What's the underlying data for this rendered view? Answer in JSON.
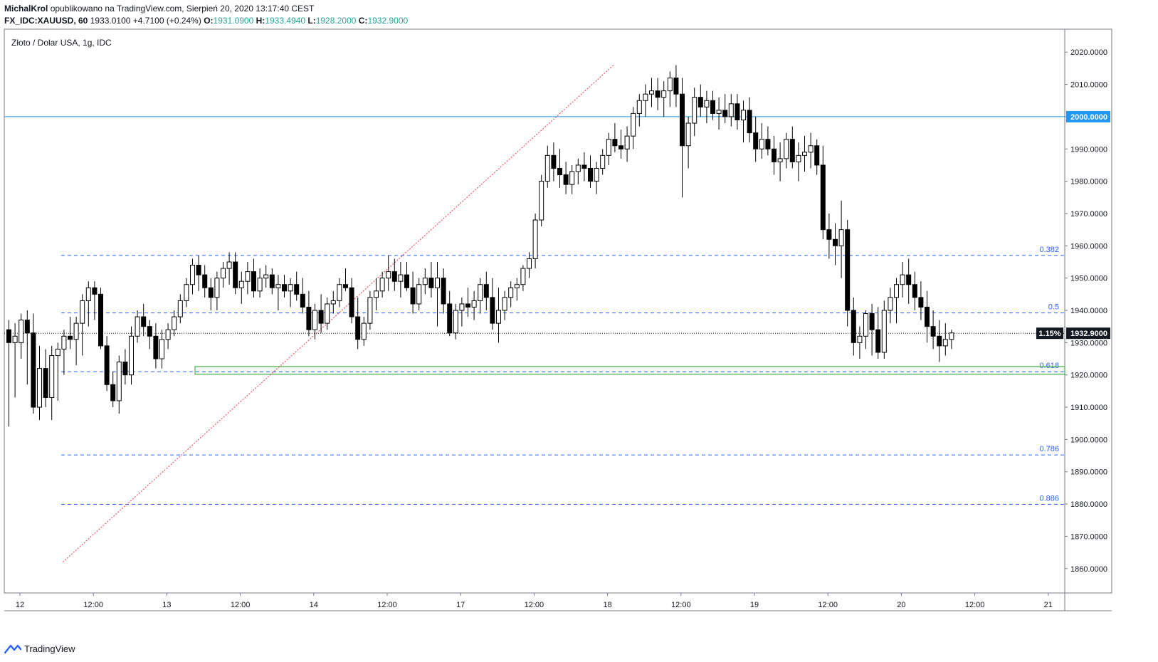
{
  "header": {
    "author": "MichalKrol",
    "published": "opublikowano na TradingView.com, Sierpień 20, 2020 13:17:40 CEST",
    "symbol": "FX_IDC:XAUUSD, 60",
    "last": "1933.0100",
    "change": "+4.7100 (+0.24%)",
    "open_label": "O:",
    "open": "1931.0900",
    "high_label": "H:",
    "high": "1933.4940",
    "low_label": "L:",
    "low": "1928.2000",
    "close_label": "C:",
    "close": "1932.9000"
  },
  "chart_title": "Złoto / Dolar USA, 1g, IDC",
  "footer": {
    "brand": "TradingView"
  },
  "colors": {
    "grid": "#e0e3eb",
    "fib": "#2962ff",
    "level": "#2196f3",
    "trend": "#f23645",
    "zone": "#4caf50",
    "candle_down": "#000000",
    "candle_up": "#ffffff"
  },
  "chart_data": {
    "type": "candlestick",
    "ylim": [
      1853,
      2027
    ],
    "y_ticks": [
      1860,
      1870,
      1880,
      1890,
      1900,
      1910,
      1920,
      1930,
      1940,
      1950,
      1960,
      1970,
      1980,
      1990,
      2000,
      2010,
      2020
    ],
    "y_tick_labels": [
      "1860.0000",
      "1870.0000",
      "1880.0000",
      "1890.0000",
      "1900.0000",
      "1910.0000",
      "1920.0000",
      "1930.0000",
      "1940.0000",
      "1950.0000",
      "1960.0000",
      "1970.0000",
      "1980.0000",
      "1990.0000",
      "2000.0000",
      "2010.0000",
      "2020.0000"
    ],
    "x_ticks": [
      {
        "i": 0,
        "label": "12"
      },
      {
        "i": 12,
        "label": "12:00"
      },
      {
        "i": 24,
        "label": "13"
      },
      {
        "i": 36,
        "label": "12:00"
      },
      {
        "i": 48,
        "label": "14"
      },
      {
        "i": 60,
        "label": "12:00"
      },
      {
        "i": 72,
        "label": "17"
      },
      {
        "i": 84,
        "label": "12:00"
      },
      {
        "i": 96,
        "label": "18"
      },
      {
        "i": 108,
        "label": "12:00"
      },
      {
        "i": 120,
        "label": "19"
      },
      {
        "i": 132,
        "label": "12:00"
      },
      {
        "i": 144,
        "label": "20"
      },
      {
        "i": 156,
        "label": "12:00"
      },
      {
        "i": 168,
        "label": "21"
      }
    ],
    "candles": [
      [
        1934,
        1937,
        1904,
        1930
      ],
      [
        1930,
        1936,
        1913,
        1932
      ],
      [
        1930,
        1939,
        1925,
        1937
      ],
      [
        1937,
        1940,
        1917,
        1933
      ],
      [
        1933,
        1939,
        1908,
        1910
      ],
      [
        1910,
        1929,
        1906,
        1922
      ],
      [
        1922,
        1928,
        1910,
        1913
      ],
      [
        1913,
        1929,
        1906,
        1926
      ],
      [
        1926,
        1930,
        1912,
        1928
      ],
      [
        1928,
        1934,
        1920,
        1932
      ],
      [
        1932,
        1938,
        1928,
        1931
      ],
      [
        1931,
        1938,
        1923,
        1936
      ],
      [
        1936,
        1945,
        1926,
        1943
      ],
      [
        1943,
        1949,
        1935,
        1947
      ],
      [
        1947,
        1949,
        1937,
        1945
      ],
      [
        1945,
        1947,
        1928,
        1929
      ],
      [
        1929,
        1932,
        1915,
        1917
      ],
      [
        1917,
        1921,
        1910,
        1912
      ],
      [
        1912,
        1926,
        1908,
        1924
      ],
      [
        1924,
        1928,
        1917,
        1920
      ],
      [
        1920,
        1935,
        1917,
        1932
      ],
      [
        1932,
        1940,
        1930,
        1938
      ],
      [
        1938,
        1942,
        1932,
        1935
      ],
      [
        1935,
        1937,
        1928,
        1932
      ],
      [
        1932,
        1936,
        1922,
        1925
      ],
      [
        1925,
        1934,
        1922,
        1931
      ],
      [
        1931,
        1936,
        1928,
        1934
      ],
      [
        1934,
        1940,
        1932,
        1938
      ],
      [
        1938,
        1945,
        1936,
        1943
      ],
      [
        1943,
        1950,
        1941,
        1948
      ],
      [
        1948,
        1956,
        1945,
        1954
      ],
      [
        1954,
        1957,
        1946,
        1951
      ],
      [
        1951,
        1954,
        1944,
        1947
      ],
      [
        1947,
        1950,
        1940,
        1944
      ],
      [
        1944,
        1952,
        1940,
        1950
      ],
      [
        1950,
        1955,
        1947,
        1953
      ],
      [
        1953,
        1958,
        1948,
        1955
      ],
      [
        1955,
        1958,
        1945,
        1947
      ],
      [
        1947,
        1952,
        1942,
        1949
      ],
      [
        1949,
        1955,
        1945,
        1952
      ],
      [
        1952,
        1956,
        1944,
        1946
      ],
      [
        1946,
        1953,
        1944,
        1950
      ],
      [
        1950,
        1954,
        1947,
        1951
      ],
      [
        1951,
        1953,
        1945,
        1947
      ],
      [
        1947,
        1951,
        1940,
        1948
      ],
      [
        1948,
        1951,
        1944,
        1946
      ],
      [
        1946,
        1950,
        1941,
        1948
      ],
      [
        1948,
        1952,
        1943,
        1945
      ],
      [
        1945,
        1950,
        1939,
        1941
      ],
      [
        1941,
        1946,
        1932,
        1934
      ],
      [
        1934,
        1942,
        1931,
        1940
      ],
      [
        1940,
        1945,
        1933,
        1936
      ],
      [
        1936,
        1944,
        1934,
        1942
      ],
      [
        1942,
        1946,
        1939,
        1943
      ],
      [
        1943,
        1950,
        1941,
        1948
      ],
      [
        1948,
        1953,
        1946,
        1947
      ],
      [
        1947,
        1950,
        1936,
        1938
      ],
      [
        1938,
        1944,
        1928,
        1931
      ],
      [
        1931,
        1938,
        1929,
        1936
      ],
      [
        1936,
        1946,
        1934,
        1944
      ],
      [
        1944,
        1950,
        1940,
        1946
      ],
      [
        1946,
        1952,
        1944,
        1950
      ],
      [
        1950,
        1957,
        1946,
        1952
      ],
      [
        1952,
        1956,
        1946,
        1949
      ],
      [
        1949,
        1955,
        1944,
        1951
      ],
      [
        1951,
        1955,
        1946,
        1947
      ],
      [
        1947,
        1952,
        1939,
        1942
      ],
      [
        1942,
        1950,
        1940,
        1948
      ],
      [
        1948,
        1953,
        1945,
        1950
      ],
      [
        1950,
        1955,
        1944,
        1947
      ],
      [
        1947,
        1955,
        1935,
        1950
      ],
      [
        1950,
        1953,
        1939,
        1942
      ],
      [
        1942,
        1946,
        1932,
        1933
      ],
      [
        1933,
        1942,
        1931,
        1940
      ],
      [
        1940,
        1944,
        1935,
        1942
      ],
      [
        1942,
        1947,
        1938,
        1941
      ],
      [
        1941,
        1946,
        1937,
        1943
      ],
      [
        1943,
        1950,
        1939,
        1948
      ],
      [
        1948,
        1952,
        1940,
        1944
      ],
      [
        1944,
        1950,
        1934,
        1936
      ],
      [
        1936,
        1947,
        1930,
        1940
      ],
      [
        1940,
        1946,
        1937,
        1944
      ],
      [
        1944,
        1949,
        1941,
        1947
      ],
      [
        1947,
        1950,
        1943,
        1948
      ],
      [
        1948,
        1954,
        1946,
        1953
      ],
      [
        1953,
        1958,
        1950,
        1956
      ],
      [
        1956,
        1970,
        1953,
        1968
      ],
      [
        1968,
        1982,
        1966,
        1980
      ],
      [
        1980,
        1991,
        1978,
        1988
      ],
      [
        1988,
        1992,
        1980,
        1984
      ],
      [
        1984,
        1990,
        1978,
        1982
      ],
      [
        1982,
        1986,
        1976,
        1979
      ],
      [
        1979,
        1985,
        1976,
        1983
      ],
      [
        1983,
        1987,
        1979,
        1985
      ],
      [
        1985,
        1989,
        1980,
        1984
      ],
      [
        1984,
        1988,
        1978,
        1980
      ],
      [
        1980,
        1986,
        1976,
        1984
      ],
      [
        1984,
        1990,
        1982,
        1988
      ],
      [
        1988,
        1995,
        1985,
        1993
      ],
      [
        1993,
        1998,
        1989,
        1991
      ],
      [
        1991,
        1996,
        1987,
        1990
      ],
      [
        1990,
        1997,
        1986,
        1994
      ],
      [
        1994,
        2003,
        1990,
        2001
      ],
      [
        2001,
        2007,
        1997,
        2005
      ],
      [
        2005,
        2010,
        2000,
        2007
      ],
      [
        2007,
        2012,
        2003,
        2008
      ],
      [
        2008,
        2012,
        2002,
        2006
      ],
      [
        2006,
        2011,
        2000,
        2008
      ],
      [
        2008,
        2014,
        2003,
        2012
      ],
      [
        2012,
        2016,
        2003,
        2007
      ],
      [
        2007,
        2012,
        1975,
        1991
      ],
      [
        1991,
        2000,
        1984,
        1998
      ],
      [
        1998,
        2009,
        1994,
        2006
      ],
      [
        2006,
        2010,
        2000,
        2003
      ],
      [
        2003,
        2008,
        1998,
        2005
      ],
      [
        2005,
        2008,
        1999,
        2001
      ],
      [
        2001,
        2006,
        1996,
        2002
      ],
      [
        2002,
        2007,
        1998,
        2000
      ],
      [
        2000,
        2007,
        1997,
        2004
      ],
      [
        2004,
        2007,
        1996,
        1999
      ],
      [
        1999,
        2005,
        1992,
        2002
      ],
      [
        2002,
        2006,
        1992,
        1995
      ],
      [
        1995,
        2000,
        1986,
        1990
      ],
      [
        1990,
        1998,
        1987,
        1993
      ],
      [
        1993,
        1997,
        1988,
        1990
      ],
      [
        1990,
        1994,
        1982,
        1986
      ],
      [
        1986,
        1992,
        1980,
        1987
      ],
      [
        1987,
        1995,
        1984,
        1993
      ],
      [
        1993,
        1997,
        1984,
        1986
      ],
      [
        1986,
        1992,
        1980,
        1988
      ],
      [
        1988,
        1994,
        1983,
        1989
      ],
      [
        1989,
        1995,
        1984,
        1991
      ],
      [
        1991,
        1993,
        1982,
        1985
      ],
      [
        1985,
        1991,
        1962,
        1965
      ],
      [
        1965,
        1970,
        1956,
        1962
      ],
      [
        1962,
        1967,
        1954,
        1960
      ],
      [
        1960,
        1974,
        1950,
        1965
      ],
      [
        1965,
        1968,
        1935,
        1940
      ],
      [
        1940,
        1944,
        1926,
        1930
      ],
      [
        1930,
        1935,
        1925,
        1932
      ],
      [
        1932,
        1940,
        1928,
        1939
      ],
      [
        1939,
        1942,
        1926,
        1934
      ],
      [
        1934,
        1941,
        1925,
        1927
      ],
      [
        1927,
        1943,
        1925,
        1940
      ],
      [
        1940,
        1947,
        1936,
        1944
      ],
      [
        1944,
        1950,
        1936,
        1948
      ],
      [
        1948,
        1955,
        1944,
        1951
      ],
      [
        1951,
        1956,
        1942,
        1948
      ],
      [
        1948,
        1952,
        1940,
        1944
      ],
      [
        1944,
        1949,
        1937,
        1941
      ],
      [
        1941,
        1946,
        1930,
        1935
      ],
      [
        1935,
        1940,
        1928,
        1932
      ],
      [
        1932,
        1937,
        1924,
        1929
      ],
      [
        1929,
        1936,
        1926,
        1931
      ],
      [
        1931,
        1934,
        1928,
        1933
      ]
    ]
  },
  "levels": {
    "hline_value": 2000,
    "hline_label": "2000.0000",
    "current_value": 1932.9,
    "current_pct": "1.15%",
    "current_label": "1932.9000",
    "fib": [
      {
        "value": 1957.0,
        "label": "0.382"
      },
      {
        "value": 1939.2,
        "label": "0.5"
      },
      {
        "value": 1921.0,
        "label": "0.618"
      },
      {
        "value": 1895.2,
        "label": "0.786"
      },
      {
        "value": 1879.9,
        "label": "0.886"
      }
    ],
    "zone": [
      1920.2,
      1922.6
    ],
    "trendline": [
      [
        7,
        1862
      ],
      [
        97,
        2016
      ]
    ]
  }
}
